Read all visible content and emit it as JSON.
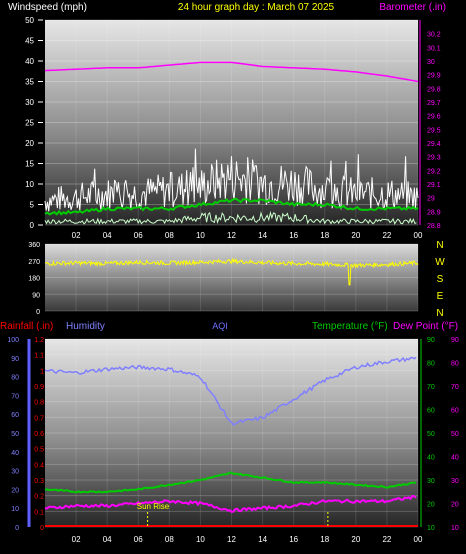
{
  "header": {
    "title": "24 hour graph day : March 07 2025",
    "left_label": "Windspeed (mph)",
    "right_label": "Barometer (.in)"
  },
  "time_ticks": [
    "02",
    "04",
    "06",
    "08",
    "10",
    "12",
    "14",
    "16",
    "18",
    "20",
    "22",
    "00"
  ],
  "colors": {
    "title": "#ffff00",
    "wind_label": "#ffffff",
    "baro_label": "#ff00ff",
    "wind_gust": "#ffffff",
    "wind_avg": "#00cc00",
    "wind_low": "#ccffcc",
    "barometer": "#ff00ff",
    "direction": "#ffff00",
    "rain_axis": "#ff0000",
    "humidity": "#8080ff",
    "temperature": "#00cc00",
    "dew_point": "#ff00ff",
    "aqi": "#7070ff",
    "sunrise": "#ffff00"
  },
  "bottom_labels": {
    "rainfall": "Rainfall (.in)",
    "humidity": "Humidity",
    "aqi": "AQI",
    "temperature": "Temperature (°F)",
    "dew_point": "Dew Point (°F)",
    "sun_rise": "Sun Rise"
  },
  "direction_letters": [
    "N",
    "W",
    "S",
    "E",
    "N"
  ],
  "chart_data": [
    {
      "type": "line",
      "title": "24 hour graph day : March 07 2025",
      "ylabel": "Windspeed (mph)",
      "y2label": "Barometer (.in)",
      "x": [
        "00",
        "02",
        "04",
        "06",
        "08",
        "10",
        "12",
        "14",
        "16",
        "18",
        "20",
        "22",
        "00"
      ],
      "ylim": [
        0,
        50
      ],
      "yticks": [
        0,
        5,
        10,
        15,
        20,
        25,
        30,
        35,
        40,
        45,
        50
      ],
      "y2lim": [
        28.8,
        30.3
      ],
      "y2ticks": [
        "28.8",
        "28.9",
        "29",
        "29.1",
        "29.2",
        "29.3",
        "29.4",
        "29.5",
        "29.6",
        "29.7",
        "29.8",
        "29.9",
        "30",
        "30.1",
        "30.2"
      ],
      "series": [
        {
          "name": "Wind gust",
          "axis": "left",
          "values": [
            7,
            8,
            9,
            9,
            10,
            11,
            14,
            12,
            12,
            10,
            9,
            9,
            8
          ]
        },
        {
          "name": "Wind avg",
          "axis": "left",
          "values": [
            3,
            3,
            4,
            4,
            4,
            5,
            6,
            6,
            5,
            5,
            4,
            4,
            4
          ]
        },
        {
          "name": "Wind low",
          "axis": "left",
          "values": [
            1,
            1,
            1,
            1,
            1,
            2,
            2,
            2,
            2,
            1,
            1,
            1,
            1
          ]
        },
        {
          "name": "Barometer",
          "axis": "right",
          "values": [
            29.93,
            29.94,
            29.95,
            29.95,
            29.97,
            29.99,
            29.99,
            29.96,
            29.95,
            29.94,
            29.92,
            29.89,
            29.85
          ]
        }
      ],
      "grid": true
    },
    {
      "type": "line",
      "ylabel": "Wind direction",
      "ylim": [
        0,
        360
      ],
      "yticks": [
        0,
        90,
        180,
        270,
        360
      ],
      "series": [
        {
          "name": "Wind direction",
          "values": [
            255,
            258,
            255,
            262,
            258,
            262,
            268,
            260,
            255,
            252,
            245,
            250,
            258
          ]
        }
      ],
      "grid": true
    },
    {
      "type": "line",
      "x": [
        "00",
        "02",
        "04",
        "06",
        "08",
        "10",
        "12",
        "14",
        "16",
        "18",
        "20",
        "22",
        "00"
      ],
      "rain_ylim": [
        0,
        1.2
      ],
      "rain_ticks": [
        "0",
        "0.1",
        "0.2",
        "0.3",
        "0.4",
        "0.5",
        "0.6",
        "0.7",
        "0.8",
        "0.9",
        "1",
        "1.1",
        "1.2"
      ],
      "humidity_ylim": [
        0,
        100
      ],
      "humidity_ticks": [
        0,
        10,
        20,
        30,
        40,
        50,
        60,
        70,
        80,
        90,
        100
      ],
      "temp_ylim": [
        10,
        90
      ],
      "temp_ticks": [
        10,
        20,
        30,
        40,
        50,
        60,
        70,
        80,
        90
      ],
      "series": [
        {
          "name": "Rainfall",
          "axis": "rain",
          "values": [
            0,
            0,
            0,
            0,
            0,
            0,
            0,
            0,
            0,
            0,
            0,
            0,
            0
          ]
        },
        {
          "name": "Humidity",
          "axis": "humidity",
          "values": [
            83,
            82,
            84,
            85,
            84,
            80,
            55,
            58,
            68,
            78,
            85,
            88,
            90
          ]
        },
        {
          "name": "Temperature",
          "axis": "temp",
          "values": [
            26,
            25,
            25,
            26,
            28,
            30,
            33,
            31,
            29,
            29,
            28,
            27,
            29
          ]
        },
        {
          "name": "Dew Point",
          "axis": "temp",
          "values": [
            18,
            19,
            19,
            20,
            21,
            20,
            17,
            18,
            19,
            21,
            21,
            21,
            23
          ]
        }
      ],
      "sunrise_hour": 6.6,
      "sunset_hour": 18.2,
      "grid": true
    }
  ]
}
